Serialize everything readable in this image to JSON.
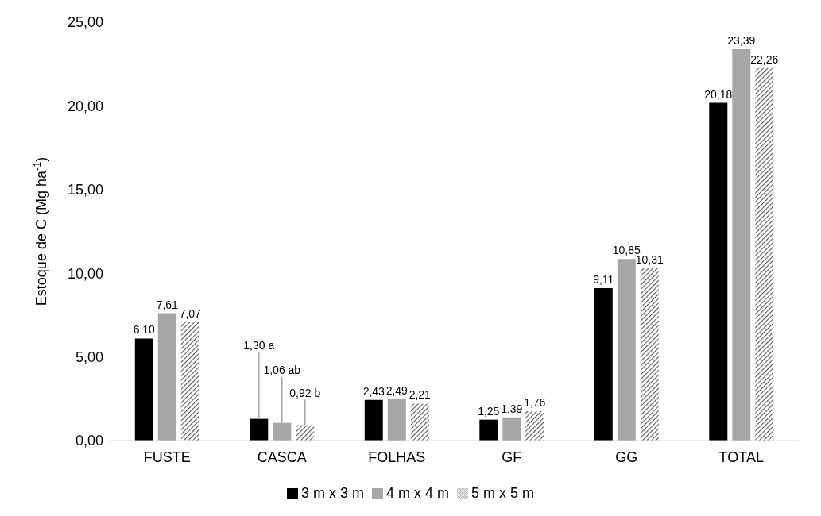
{
  "chart_data": {
    "type": "bar",
    "ylabel": "Estoque de C (Mg ha$^{-1}$)",
    "categories": [
      "FUSTE",
      "CASCA",
      "FOLHAS",
      "GF",
      "GG",
      "TOTAL"
    ],
    "series": [
      {
        "name": "3 m  x 3 m",
        "color": "#000000",
        "values": [
          6.1,
          1.3,
          2.43,
          1.25,
          9.11,
          20.18
        ],
        "value_labels": [
          "6,10",
          "1,30 a",
          "2,43",
          "1,25",
          "9,11",
          "20,18"
        ]
      },
      {
        "name": "4 m x 4 m",
        "color": "#a6a6a6",
        "values": [
          7.61,
          1.06,
          2.49,
          1.39,
          10.85,
          23.39
        ],
        "value_labels": [
          "7,61",
          "1,06 ab",
          "2,49",
          "1,39",
          "10,85",
          "23,39"
        ]
      },
      {
        "name": "5 m x 5 m",
        "color": "#595959",
        "values": [
          7.07,
          0.92,
          2.21,
          1.76,
          10.31,
          22.26
        ],
        "value_labels": [
          "7,07",
          "0,92 b",
          "2,21",
          "1,76",
          "10,31",
          "22,26"
        ]
      }
    ],
    "ylim": [
      0,
      25
    ],
    "yticks": [
      {
        "value": 0,
        "label": "0,00"
      },
      {
        "value": 5,
        "label": "5,00"
      },
      {
        "value": 10,
        "label": "10,00"
      },
      {
        "value": 15,
        "label": "15,00"
      },
      {
        "value": 20,
        "label": "20,00"
      },
      {
        "value": 25,
        "label": "25,00"
      }
    ],
    "grid": false,
    "legend": "bottom"
  }
}
